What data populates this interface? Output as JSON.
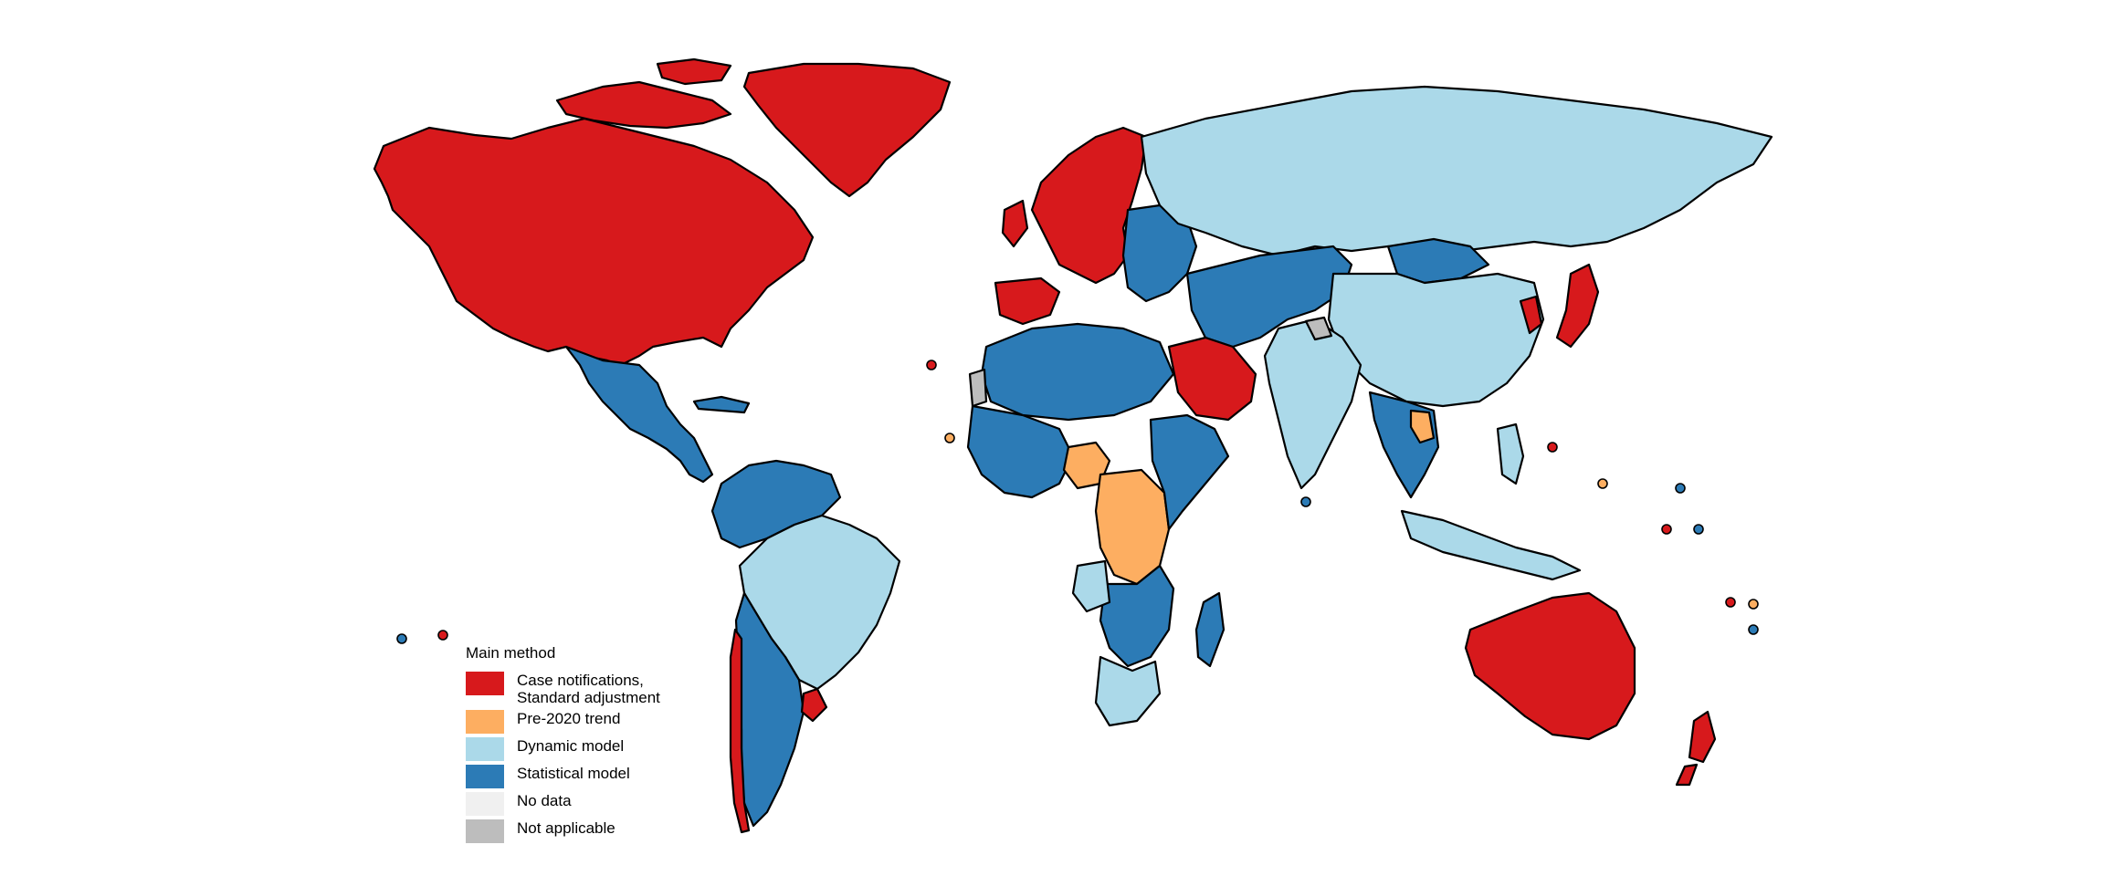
{
  "legend": {
    "title": "Main method",
    "items": [
      {
        "key": "case",
        "line1": "Case notifications,",
        "line2": "Standard adjustment",
        "color": "#d7191c"
      },
      {
        "key": "trend",
        "line1": "Pre-2020 trend",
        "line2": "",
        "color": "#fdae61"
      },
      {
        "key": "dynamic",
        "line1": "Dynamic model",
        "line2": "",
        "color": "#abd9e9"
      },
      {
        "key": "statistical",
        "line1": "Statistical model",
        "line2": "",
        "color": "#2c7bb6"
      },
      {
        "key": "nodata",
        "line1": "No data",
        "line2": "",
        "color": "#f0f0f0"
      },
      {
        "key": "na",
        "line1": "Not applicable",
        "line2": "",
        "color": "#bdbdbd"
      }
    ]
  },
  "regions": [
    {
      "name": "north-america",
      "method": "case"
    },
    {
      "name": "greenland",
      "method": "case"
    },
    {
      "name": "mexico-central-america",
      "method": "statistical"
    },
    {
      "name": "caribbean",
      "method": "statistical"
    },
    {
      "name": "northern-south-america",
      "method": "statistical"
    },
    {
      "name": "brazil",
      "method": "dynamic"
    },
    {
      "name": "southern-cone",
      "method": "statistical"
    },
    {
      "name": "chile",
      "method": "case"
    },
    {
      "name": "uruguay",
      "method": "case"
    },
    {
      "name": "western-europe",
      "method": "case"
    },
    {
      "name": "eastern-europe-balkans",
      "method": "statistical"
    },
    {
      "name": "russia",
      "method": "dynamic"
    },
    {
      "name": "central-asia-middle-east",
      "method": "statistical"
    },
    {
      "name": "arabian-peninsula",
      "method": "case"
    },
    {
      "name": "north-africa",
      "method": "statistical"
    },
    {
      "name": "western-sahara",
      "method": "na"
    },
    {
      "name": "west-africa",
      "method": "statistical"
    },
    {
      "name": "nigeria",
      "method": "trend"
    },
    {
      "name": "central-africa",
      "method": "trend"
    },
    {
      "name": "east-africa",
      "method": "statistical"
    },
    {
      "name": "southern-africa",
      "method": "statistical"
    },
    {
      "name": "angola",
      "method": "dynamic"
    },
    {
      "name": "south-africa",
      "method": "dynamic"
    },
    {
      "name": "madagascar",
      "method": "statistical"
    },
    {
      "name": "mongolia",
      "method": "statistical"
    },
    {
      "name": "china",
      "method": "dynamic"
    },
    {
      "name": "india",
      "method": "dynamic"
    },
    {
      "name": "kashmir",
      "method": "na"
    },
    {
      "name": "southeast-asia",
      "method": "statistical"
    },
    {
      "name": "laos",
      "method": "trend"
    },
    {
      "name": "indonesia-philippines",
      "method": "dynamic"
    },
    {
      "name": "japan-korea",
      "method": "case"
    },
    {
      "name": "australia",
      "method": "case"
    },
    {
      "name": "new-zealand",
      "method": "case"
    }
  ]
}
